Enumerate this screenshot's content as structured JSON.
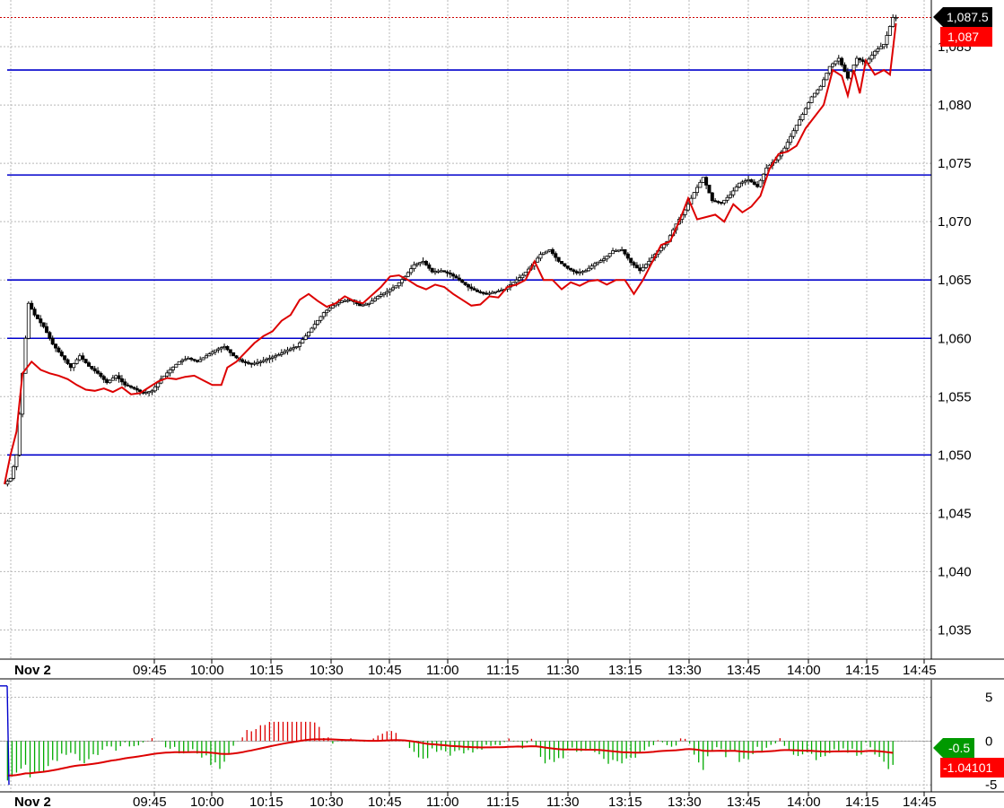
{
  "chart_data": [
    {
      "type": "candlestick",
      "ylim": [
        1032.5,
        1089
      ],
      "y_ticks": [
        "1,035",
        "1,040",
        "1,045",
        "1,050",
        "1,055",
        "1,060",
        "1,065",
        "1,070",
        "1,075",
        "1,080",
        "1,085"
      ],
      "y_tick_values": [
        1035,
        1040,
        1045,
        1050,
        1055,
        1060,
        1065,
        1070,
        1075,
        1080,
        1085
      ],
      "x_date_label": "Nov 2",
      "x_ticks": [
        "09:45",
        "10:00",
        "10:15",
        "10:30",
        "10:45",
        "11:00",
        "11:15",
        "11:30",
        "13:15",
        "13:30",
        "13:45",
        "14:00",
        "14:15",
        "14:45"
      ],
      "horizontal_levels": [
        1083,
        1074,
        1065,
        1060,
        1050
      ],
      "level_color": "#0000cc",
      "last_price": 1087.5,
      "last_price_label": "1,087.5",
      "red_line_last_label": "1,087",
      "ohlc_color_up": "#ffffff",
      "ohlc_color_down": "#000000",
      "close_path": [
        [
          0,
          1047.5
        ],
        [
          2,
          1048
        ],
        [
          4,
          1050
        ],
        [
          6,
          1057
        ],
        [
          8,
          1063
        ],
        [
          10,
          1062
        ],
        [
          13,
          1061
        ],
        [
          16,
          1059.5
        ],
        [
          19,
          1058.5
        ],
        [
          22,
          1057.5
        ],
        [
          25,
          1058.5
        ],
        [
          28,
          1057.6
        ],
        [
          31,
          1057
        ],
        [
          34,
          1056.2
        ],
        [
          37,
          1056.8
        ],
        [
          40,
          1056
        ],
        [
          43,
          1055.7
        ],
        [
          46,
          1055.3
        ],
        [
          49,
          1055.5
        ],
        [
          52,
          1056.5
        ],
        [
          55,
          1057.3
        ],
        [
          58,
          1058
        ],
        [
          61,
          1058.3
        ],
        [
          64,
          1058
        ],
        [
          67,
          1058.5
        ],
        [
          70,
          1059
        ],
        [
          73,
          1059.3
        ],
        [
          76,
          1058.5
        ],
        [
          79,
          1058
        ],
        [
          82,
          1057.8
        ],
        [
          85,
          1058
        ],
        [
          88,
          1058.3
        ],
        [
          91,
          1058.6
        ],
        [
          94,
          1059
        ],
        [
          97,
          1059.3
        ],
        [
          100,
          1060.2
        ],
        [
          103,
          1061.2
        ],
        [
          106,
          1062.2
        ],
        [
          109,
          1062.8
        ],
        [
          112,
          1063.2
        ],
        [
          115,
          1063.3
        ],
        [
          118,
          1062.8
        ],
        [
          121,
          1063
        ],
        [
          124,
          1063.6
        ],
        [
          127,
          1064
        ],
        [
          130,
          1064.5
        ],
        [
          133,
          1065.3
        ],
        [
          136,
          1066.3
        ],
        [
          139,
          1066.6
        ],
        [
          142,
          1065.7
        ],
        [
          145,
          1065.8
        ],
        [
          148,
          1065.5
        ],
        [
          151,
          1065
        ],
        [
          154,
          1064.4
        ],
        [
          157,
          1064
        ],
        [
          160,
          1063.8
        ],
        [
          163,
          1064
        ],
        [
          166,
          1064.2
        ],
        [
          169,
          1064.8
        ],
        [
          172,
          1065.4
        ],
        [
          175,
          1066.2
        ],
        [
          178,
          1067.2
        ],
        [
          181,
          1067.6
        ],
        [
          184,
          1066.6
        ],
        [
          187,
          1066
        ],
        [
          190,
          1065.6
        ],
        [
          193,
          1065.8
        ],
        [
          196,
          1066.4
        ],
        [
          199,
          1066.8
        ],
        [
          202,
          1067.5
        ],
        [
          205,
          1067.6
        ],
        [
          208,
          1066.5
        ],
        [
          211,
          1065.8
        ],
        [
          214,
          1066.6
        ],
        [
          217,
          1067.5
        ],
        [
          220,
          1068.3
        ],
        [
          223,
          1069.8
        ],
        [
          226,
          1071
        ],
        [
          229,
          1072.5
        ],
        [
          232,
          1073.8
        ],
        [
          235,
          1071.8
        ],
        [
          238,
          1071.6
        ],
        [
          241,
          1072.3
        ],
        [
          244,
          1073.3
        ],
        [
          247,
          1073.6
        ],
        [
          250,
          1073
        ],
        [
          253,
          1074.6
        ],
        [
          256,
          1075.3
        ],
        [
          259,
          1076.3
        ],
        [
          262,
          1077.8
        ],
        [
          265,
          1079.2
        ],
        [
          268,
          1080.7
        ],
        [
          271,
          1081.6
        ],
        [
          274,
          1083.3
        ],
        [
          277,
          1084
        ],
        [
          280,
          1082.3
        ],
        [
          283,
          1084
        ],
        [
          286,
          1083.6
        ],
        [
          289,
          1084.6
        ],
        [
          292,
          1085.2
        ],
        [
          295,
          1087.5
        ]
      ],
      "red_line": [
        [
          0,
          1047.5
        ],
        [
          2,
          1050
        ],
        [
          4,
          1052
        ],
        [
          6,
          1057
        ],
        [
          9,
          1058
        ],
        [
          12,
          1057.3
        ],
        [
          15,
          1057
        ],
        [
          18,
          1056.8
        ],
        [
          21,
          1056.5
        ],
        [
          24,
          1056
        ],
        [
          27,
          1055.6
        ],
        [
          30,
          1055.5
        ],
        [
          33,
          1055.7
        ],
        [
          36,
          1055.4
        ],
        [
          39,
          1055.8
        ],
        [
          42,
          1055.2
        ],
        [
          45,
          1055.3
        ],
        [
          48,
          1055.8
        ],
        [
          51,
          1056.3
        ],
        [
          54,
          1056.6
        ],
        [
          57,
          1056.5
        ],
        [
          60,
          1056.7
        ],
        [
          63,
          1056.8
        ],
        [
          66,
          1056.4
        ],
        [
          69,
          1056
        ],
        [
          72,
          1056
        ],
        [
          74,
          1057.5
        ],
        [
          77,
          1058
        ],
        [
          80,
          1058.8
        ],
        [
          83,
          1059.6
        ],
        [
          86,
          1060.2
        ],
        [
          89,
          1060.6
        ],
        [
          92,
          1061.5
        ],
        [
          95,
          1062
        ],
        [
          98,
          1063.3
        ],
        [
          101,
          1063.8
        ],
        [
          104,
          1063.2
        ],
        [
          107,
          1062.7
        ],
        [
          110,
          1063
        ],
        [
          113,
          1063.6
        ],
        [
          116,
          1063.2
        ],
        [
          119,
          1063
        ],
        [
          122,
          1063.7
        ],
        [
          125,
          1064.4
        ],
        [
          128,
          1065.3
        ],
        [
          131,
          1065.4
        ],
        [
          134,
          1065
        ],
        [
          137,
          1064.5
        ],
        [
          140,
          1064.2
        ],
        [
          143,
          1064.6
        ],
        [
          146,
          1064.4
        ],
        [
          149,
          1063.8
        ],
        [
          152,
          1063.3
        ],
        [
          155,
          1062.8
        ],
        [
          158,
          1062.9
        ],
        [
          161,
          1063.6
        ],
        [
          164,
          1063.5
        ],
        [
          167,
          1064.4
        ],
        [
          170,
          1064.6
        ],
        [
          173,
          1065
        ],
        [
          176,
          1066.6
        ],
        [
          179,
          1065
        ],
        [
          182,
          1065
        ],
        [
          185,
          1064.2
        ],
        [
          188,
          1064.8
        ],
        [
          191,
          1064.5
        ],
        [
          194,
          1064.9
        ],
        [
          197,
          1065
        ],
        [
          200,
          1064.6
        ],
        [
          203,
          1065
        ],
        [
          206,
          1065
        ],
        [
          209,
          1063.8
        ],
        [
          212,
          1065
        ],
        [
          215,
          1066.5
        ],
        [
          218,
          1068
        ],
        [
          221,
          1068.3
        ],
        [
          224,
          1070
        ],
        [
          227,
          1072
        ],
        [
          230,
          1070.2
        ],
        [
          233,
          1070.4
        ],
        [
          236,
          1070.6
        ],
        [
          239,
          1070
        ],
        [
          242,
          1071.5
        ],
        [
          245,
          1070.8
        ],
        [
          248,
          1071.3
        ],
        [
          251,
          1072.2
        ],
        [
          254,
          1074.5
        ],
        [
          257,
          1075.8
        ],
        [
          260,
          1076
        ],
        [
          263,
          1076.5
        ],
        [
          266,
          1078
        ],
        [
          269,
          1079
        ],
        [
          272,
          1080
        ],
        [
          275,
          1083
        ],
        [
          278,
          1082.5
        ],
        [
          280,
          1080.8
        ],
        [
          282,
          1083
        ],
        [
          284,
          1081
        ],
        [
          286,
          1083.8
        ],
        [
          289,
          1082.6
        ],
        [
          292,
          1083
        ],
        [
          294,
          1082.6
        ],
        [
          296,
          1087
        ]
      ]
    },
    {
      "type": "bar",
      "ylim": [
        -5.8,
        7
      ],
      "y_ticks": [
        "-5",
        "0",
        "5"
      ],
      "y_tick_values": [
        -5,
        0,
        5
      ],
      "x_date_label": "Nov 2",
      "x_ticks": [
        "09:45",
        "10:00",
        "10:15",
        "10:30",
        "10:45",
        "11:00",
        "11:15",
        "11:30",
        "13:15",
        "13:30",
        "13:45",
        "14:00",
        "14:15",
        "14:45"
      ],
      "last_value_label": "-0.5",
      "signal_last_label": "-1.04101",
      "positive_color": "#dd0000",
      "negative_color": "#00aa00",
      "signal_color": "#dd0000"
    }
  ]
}
